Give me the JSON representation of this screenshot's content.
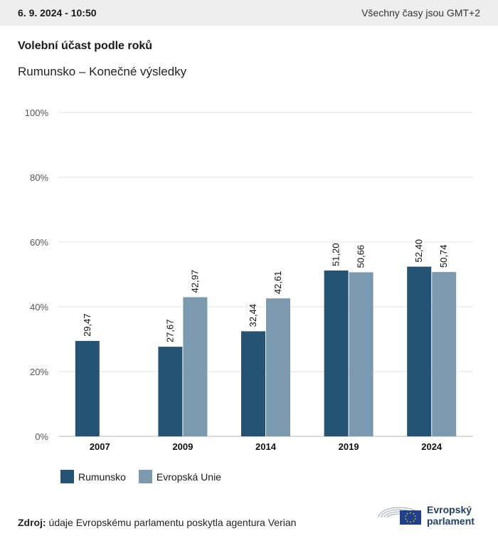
{
  "header": {
    "datetime": "6. 9. 2024 - 10:50",
    "timezone": "Všechny časy jsou GMT+2"
  },
  "title": "Volební účast podle roků",
  "subtitle": "Rumunsko – Konečné výsledky",
  "chart_data": {
    "type": "bar",
    "categories": [
      "2007",
      "2009",
      "2014",
      "2019",
      "2024"
    ],
    "series": [
      {
        "name": "Rumunsko",
        "color": "#255373",
        "values": [
          29.47,
          27.67,
          32.44,
          51.2,
          52.4
        ]
      },
      {
        "name": "Evropská Unie",
        "color": "#7b9ab0",
        "values": [
          null,
          42.97,
          42.61,
          50.66,
          50.74
        ]
      }
    ],
    "yticks": [
      "0%",
      "20%",
      "40%",
      "60%",
      "80%",
      "100%"
    ],
    "ylim": [
      0,
      100
    ],
    "grid": true,
    "legend": "bottom-left",
    "data_labels": true
  },
  "legend": [
    {
      "label": "Rumunsko",
      "color": "#255373"
    },
    {
      "label": "Evropská Unie",
      "color": "#7b9ab0"
    }
  ],
  "source": {
    "prefix": "Zdroj:",
    "text": "údaje Evropskému parlamentu poskytla agentura Verian"
  },
  "logo": {
    "line1": "Evropský",
    "line2": "parlament"
  }
}
